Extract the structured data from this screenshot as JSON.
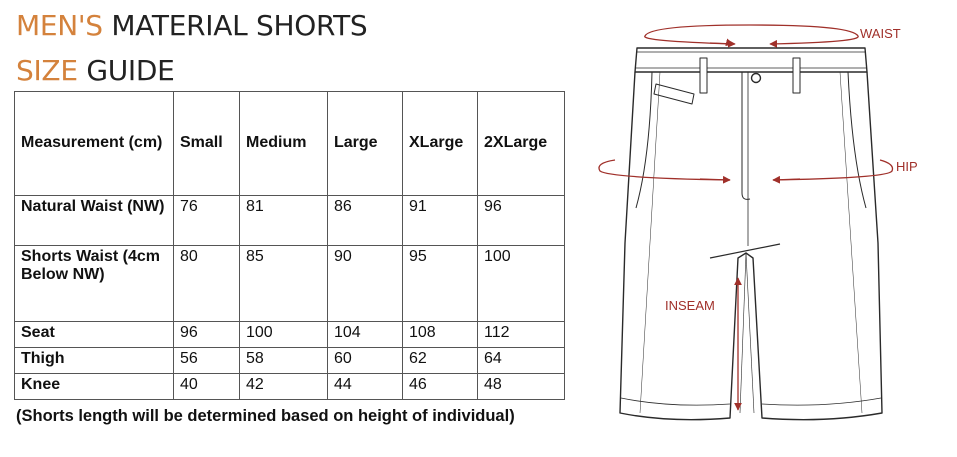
{
  "title": {
    "line1_accent": "MEN'S",
    "line1_rest": "MATERIAL SHORTS",
    "line2_accent": "SIZE",
    "line2_rest": "GUIDE"
  },
  "colors": {
    "accent": "#d4823c",
    "arrow": "#a0302a"
  },
  "table": {
    "headers": [
      "Measurement (cm)",
      "Small",
      "Medium",
      "Large",
      "XLarge",
      "2XLarge"
    ],
    "rows": [
      {
        "label": "Natural Waist (NW)",
        "values": [
          "76",
          "81",
          "86",
          "91",
          "96"
        ]
      },
      {
        "label": "Shorts Waist (4cm Below NW)",
        "values": [
          "80",
          "85",
          "90",
          "95",
          "100"
        ]
      },
      {
        "label": "Seat",
        "values": [
          "96",
          "100",
          "104",
          "108",
          "112"
        ]
      },
      {
        "label": "Thigh",
        "values": [
          "56",
          "58",
          "60",
          "62",
          "64"
        ]
      },
      {
        "label": "Knee",
        "values": [
          "40",
          "42",
          "44",
          "46",
          "48"
        ]
      }
    ]
  },
  "note": "(Shorts length will be determined based on height of individual)",
  "diagram": {
    "waist_label": "WAIST",
    "hip_label": "HIP",
    "inseam_label": "INSEAM"
  }
}
